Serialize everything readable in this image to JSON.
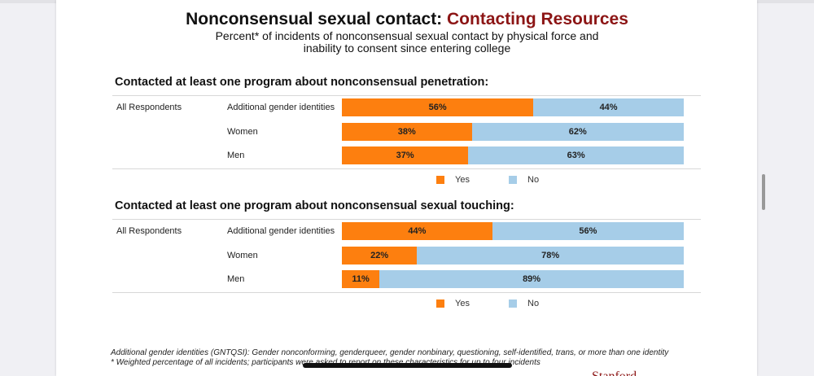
{
  "title": {
    "main": "Nonconsensual sexual contact: ",
    "accent": "Contacting Resources"
  },
  "subtitle": "Percent* of incidents of nonconsensual sexual contact by physical force and inability to consent since entering college",
  "colors": {
    "yes": "#fd7f0f",
    "no": "#a6cde8",
    "accent": "#8c1515"
  },
  "chart_data": [
    {
      "type": "bar",
      "orientation": "horizontal-stacked-100",
      "title": "Contacted at least one program about nonconsensual penetration:",
      "group": "All Respondents",
      "categories": [
        "Additional gender identities",
        "Women",
        "Men"
      ],
      "series": [
        {
          "name": "Yes",
          "values": [
            56,
            38,
            37
          ],
          "labels": [
            "56%",
            "38%",
            "37%"
          ]
        },
        {
          "name": "No",
          "values": [
            44,
            62,
            63
          ],
          "labels": [
            "44%",
            "62%",
            "63%"
          ]
        }
      ],
      "legend": [
        "Yes",
        "No"
      ],
      "legend_position": "bottom",
      "xlim": [
        0,
        100
      ]
    },
    {
      "type": "bar",
      "orientation": "horizontal-stacked-100",
      "title": "Contacted at least one program about nonconsensual sexual touching:",
      "group": "All Respondents",
      "categories": [
        "Additional gender identities",
        "Women",
        "Men"
      ],
      "series": [
        {
          "name": "Yes",
          "values": [
            44,
            22,
            11
          ],
          "labels": [
            "44%",
            "22%",
            "11%"
          ]
        },
        {
          "name": "No",
          "values": [
            56,
            78,
            89
          ],
          "labels": [
            "56%",
            "78%",
            "89%"
          ]
        }
      ],
      "legend": [
        "Yes",
        "No"
      ],
      "legend_position": "bottom",
      "xlim": [
        0,
        100
      ]
    }
  ],
  "footnotes": [
    "Additional gender identities (GNTQSI): Gender nonconforming, genderqueer, gender nonbinary, questioning, self-identified, trans, or more than one identity",
    "* Weighted percentage of all incidents; participants were asked to report on these characteristics for up to four incidents"
  ],
  "logo_text": "Stanford"
}
